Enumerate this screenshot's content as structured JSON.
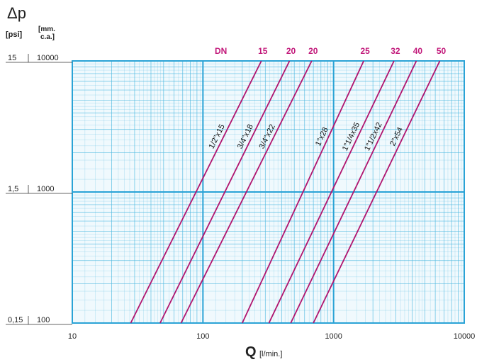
{
  "chart_data": {
    "type": "line",
    "title": "",
    "y_symbol": "Δp",
    "y_unit_psi": "[psi]",
    "y_unit_mm": "[mm. c.a.]",
    "x_symbol": "Q",
    "x_unit": "[l/min.]",
    "x_scale": "log",
    "y_scale": "log",
    "xlim": [
      10,
      10000
    ],
    "ylim_mm": [
      100,
      10000
    ],
    "x_ticks": [
      "10",
      "100",
      "1000",
      "10000"
    ],
    "y_ticks": [
      {
        "psi": "15",
        "mm": "10000"
      },
      {
        "psi": "1,5",
        "mm": "1000"
      },
      {
        "psi": "0,15",
        "mm": "100"
      }
    ],
    "dn_label": "DN",
    "grid": true,
    "colors": {
      "grid": "#4db8e0",
      "series": "#b0156f",
      "dn_text": "#c2187a",
      "bg": "#f0f9fd"
    },
    "series": [
      {
        "name": "1/2\"x15",
        "dn": "15",
        "x_at_100": 28,
        "x_at_10000": 280
      },
      {
        "name": "3/4\"x18",
        "dn": "20",
        "x_at_100": 47,
        "x_at_10000": 460
      },
      {
        "name": "3/4\"x22",
        "dn": "20",
        "x_at_100": 68,
        "x_at_10000": 680
      },
      {
        "name": "1\"x28",
        "dn": "25",
        "x_at_100": 200,
        "x_at_10000": 1700
      },
      {
        "name": "1\"1/4x35",
        "dn": "32",
        "x_at_100": 320,
        "x_at_10000": 2900
      },
      {
        "name": "1\"1/2x42",
        "dn": "40",
        "x_at_100": 470,
        "x_at_10000": 4300
      },
      {
        "name": "2\"x54",
        "dn": "50",
        "x_at_100": 700,
        "x_at_10000": 6500
      }
    ]
  }
}
